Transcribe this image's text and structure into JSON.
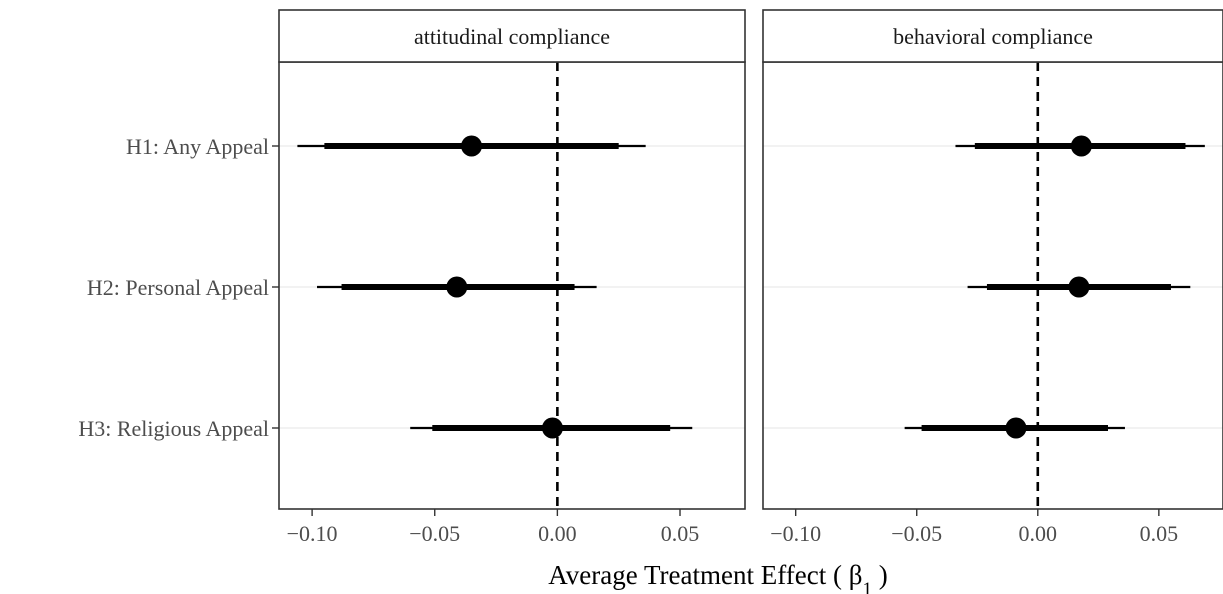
{
  "chart_data": {
    "type": "forest",
    "x_axis": {
      "title_prefix": "Average Treatment Effect ( ",
      "title_symbol": "β",
      "title_subscript": "1",
      "title_suffix": " )",
      "ticks": [
        -0.1,
        -0.05,
        0.0,
        0.05
      ],
      "tick_labels": [
        "−0.10",
        "−0.05",
        "0.00",
        "0.05"
      ],
      "xlim": [
        -0.1135,
        0.0765
      ],
      "reference_line": 0
    },
    "y_axis": {
      "categories": [
        "H1: Any Appeal",
        "H2: Personal Appeal",
        "H3: Religious Appeal"
      ]
    },
    "grid": "horizontal-major",
    "panels": [
      {
        "title": "attitudinal compliance",
        "estimates": [
          {
            "category": "H1: Any Appeal",
            "estimate": -0.035,
            "ci_inner": [
              -0.095,
              0.025
            ],
            "ci_outer": [
              -0.106,
              0.036
            ]
          },
          {
            "category": "H2: Personal Appeal",
            "estimate": -0.041,
            "ci_inner": [
              -0.088,
              0.007
            ],
            "ci_outer": [
              -0.098,
              0.016
            ]
          },
          {
            "category": "H3: Religious Appeal",
            "estimate": -0.002,
            "ci_inner": [
              -0.051,
              0.046
            ],
            "ci_outer": [
              -0.06,
              0.055
            ]
          }
        ]
      },
      {
        "title": "behavioral compliance",
        "estimates": [
          {
            "category": "H1: Any Appeal",
            "estimate": 0.018,
            "ci_inner": [
              -0.026,
              0.061
            ],
            "ci_outer": [
              -0.034,
              0.069
            ]
          },
          {
            "category": "H2: Personal Appeal",
            "estimate": 0.017,
            "ci_inner": [
              -0.021,
              0.055
            ],
            "ci_outer": [
              -0.029,
              0.063
            ]
          },
          {
            "category": "H3: Religious Appeal",
            "estimate": -0.009,
            "ci_inner": [
              -0.048,
              0.029
            ],
            "ci_outer": [
              -0.055,
              0.036
            ]
          }
        ]
      }
    ]
  }
}
